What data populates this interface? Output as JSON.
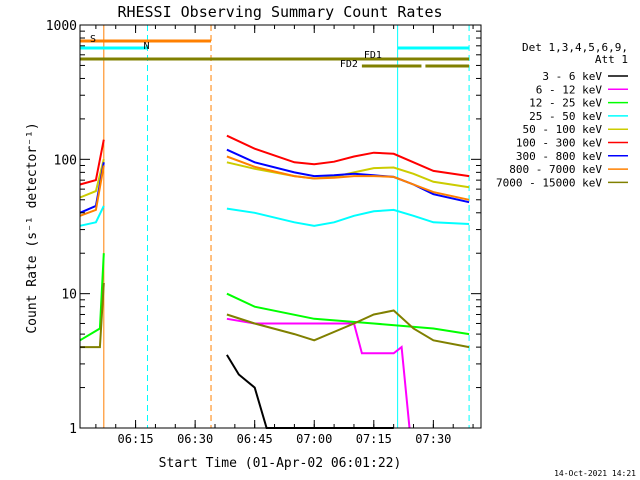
{
  "chart_data": {
    "type": "line",
    "title": "RHESSI Observing Summary Count Rates",
    "xlabel": "Start Time (01-Apr-02 06:01:22)",
    "ylabel": "Count Rate (s⁻¹ detector⁻¹)",
    "y_scale": "log",
    "ylim": [
      1,
      1000
    ],
    "xlim": [
      "06:01",
      "07:42"
    ],
    "x_ticks": [
      "06:15",
      "06:30",
      "06:45",
      "07:00",
      "07:15",
      "07:30"
    ],
    "y_ticks": [
      "1",
      "10",
      "100",
      "1000"
    ],
    "grid": false,
    "legend_title": [
      "Det 1,3,4,5,6,9,",
      "Att 1"
    ],
    "legend_position": "right",
    "timestamp": "14-Oct-2021 14:21",
    "data_gaps": [
      [
        "06:08",
        "06:37"
      ]
    ],
    "flags": [
      {
        "label": "S",
        "color": "#ff8000",
        "start": "06:01",
        "end": "06:34"
      },
      {
        "label": "N",
        "color": "#00ffff",
        "start": "06:01",
        "end": "06:18"
      },
      {
        "label": "N",
        "color": "#00ffff",
        "start": "07:21",
        "end": "07:39"
      },
      {
        "label": "FD1",
        "color": "#808000",
        "start": "06:01",
        "end": "07:39"
      },
      {
        "label": "FD2",
        "color": "#808000",
        "start": "07:12",
        "end": "07:27"
      },
      {
        "label": "FD2",
        "color": "#808000",
        "start": "07:28",
        "end": "07:39"
      }
    ],
    "vertical_markers": [
      {
        "time": "06:07",
        "color": "#ff8000",
        "style": "solid"
      },
      {
        "time": "06:18",
        "color": "#00ffff",
        "style": "dashed"
      },
      {
        "time": "06:34",
        "color": "#ff8000",
        "style": "dashed"
      },
      {
        "time": "07:21",
        "color": "#00ffff",
        "style": "solid"
      },
      {
        "time": "07:39",
        "color": "#00ffff",
        "style": "dashed"
      }
    ],
    "series": [
      {
        "name": "3 - 6 keV",
        "color": "#000000",
        "points": [
          [
            "06:38",
            3.5
          ],
          [
            "06:41",
            2.5
          ],
          [
            "06:45",
            2.0
          ],
          [
            "06:48",
            1.0
          ],
          [
            "07:20",
            1.0
          ]
        ]
      },
      {
        "name": "6 - 12 keV",
        "color": "#ff00ff",
        "points": [
          [
            "06:38",
            6.5
          ],
          [
            "06:45",
            6.0
          ],
          [
            "07:00",
            6.0
          ],
          [
            "07:10",
            6.0
          ],
          [
            "07:12",
            3.6
          ],
          [
            "07:20",
            3.6
          ],
          [
            "07:22",
            4.0
          ],
          [
            "07:24",
            1.0
          ]
        ]
      },
      {
        "name": "12 - 25 keV",
        "color": "#00ff00",
        "points": [
          [
            "06:01",
            4.5
          ],
          [
            "06:06",
            5.5
          ],
          [
            "06:07",
            20
          ],
          [
            "06:38",
            10
          ],
          [
            "06:45",
            8.0
          ],
          [
            "07:00",
            6.5
          ],
          [
            "07:15",
            6.0
          ],
          [
            "07:30",
            5.5
          ],
          [
            "07:39",
            5.0
          ]
        ]
      },
      {
        "name": "25 - 50 keV",
        "color": "#00ffff",
        "points": [
          [
            "06:01",
            32
          ],
          [
            "06:05",
            34
          ],
          [
            "06:07",
            45
          ],
          [
            "06:38",
            43
          ],
          [
            "06:45",
            40
          ],
          [
            "06:55",
            34
          ],
          [
            "07:00",
            32
          ],
          [
            "07:05",
            34
          ],
          [
            "07:10",
            38
          ],
          [
            "07:15",
            41
          ],
          [
            "07:20",
            42
          ],
          [
            "07:25",
            38
          ],
          [
            "07:30",
            34
          ],
          [
            "07:39",
            33
          ]
        ]
      },
      {
        "name": "50 - 100 keV",
        "color": "#cccc00",
        "points": [
          [
            "06:01",
            52
          ],
          [
            "06:05",
            58
          ],
          [
            "06:07",
            100
          ],
          [
            "06:38",
            95
          ],
          [
            "06:45",
            85
          ],
          [
            "06:55",
            75
          ],
          [
            "07:00",
            72
          ],
          [
            "07:05",
            74
          ],
          [
            "07:10",
            80
          ],
          [
            "07:15",
            86
          ],
          [
            "07:20",
            87
          ],
          [
            "07:25",
            78
          ],
          [
            "07:30",
            68
          ],
          [
            "07:39",
            62
          ]
        ]
      },
      {
        "name": "100 - 300 keV",
        "color": "#ff0000",
        "points": [
          [
            "06:01",
            65
          ],
          [
            "06:05",
            70
          ],
          [
            "06:07",
            140
          ],
          [
            "06:38",
            150
          ],
          [
            "06:45",
            120
          ],
          [
            "06:55",
            95
          ],
          [
            "07:00",
            92
          ],
          [
            "07:05",
            96
          ],
          [
            "07:10",
            105
          ],
          [
            "07:15",
            112
          ],
          [
            "07:20",
            110
          ],
          [
            "07:25",
            95
          ],
          [
            "07:30",
            82
          ],
          [
            "07:39",
            75
          ]
        ]
      },
      {
        "name": "300 - 800 keV",
        "color": "#0000ff",
        "points": [
          [
            "06:01",
            40
          ],
          [
            "06:05",
            45
          ],
          [
            "06:07",
            95
          ],
          [
            "06:38",
            118
          ],
          [
            "06:45",
            95
          ],
          [
            "06:55",
            80
          ],
          [
            "07:00",
            75
          ],
          [
            "07:05",
            76
          ],
          [
            "07:10",
            78
          ],
          [
            "07:15",
            76
          ],
          [
            "07:20",
            74
          ],
          [
            "07:25",
            65
          ],
          [
            "07:30",
            55
          ],
          [
            "07:39",
            48
          ]
        ]
      },
      {
        "name": "800 - 7000 keV",
        "color": "#ff8000",
        "points": [
          [
            "06:01",
            38
          ],
          [
            "06:05",
            42
          ],
          [
            "06:07",
            90
          ],
          [
            "06:38",
            105
          ],
          [
            "06:45",
            88
          ],
          [
            "06:55",
            75
          ],
          [
            "07:00",
            72
          ],
          [
            "07:05",
            73
          ],
          [
            "07:10",
            75
          ],
          [
            "07:15",
            75
          ],
          [
            "07:20",
            74
          ],
          [
            "07:25",
            65
          ],
          [
            "07:30",
            57
          ],
          [
            "07:39",
            50
          ]
        ]
      },
      {
        "name": "7000 - 15000 keV",
        "color": "#808000",
        "points": [
          [
            "06:01",
            4.0
          ],
          [
            "06:06",
            4.0
          ],
          [
            "06:07",
            12
          ],
          [
            "06:38",
            7.0
          ],
          [
            "06:45",
            6.0
          ],
          [
            "06:55",
            5.0
          ],
          [
            "07:00",
            4.5
          ],
          [
            "07:10",
            6.0
          ],
          [
            "07:15",
            7.0
          ],
          [
            "07:20",
            7.5
          ],
          [
            "07:25",
            5.5
          ],
          [
            "07:30",
            4.5
          ],
          [
            "07:39",
            4.0
          ]
        ]
      }
    ]
  }
}
